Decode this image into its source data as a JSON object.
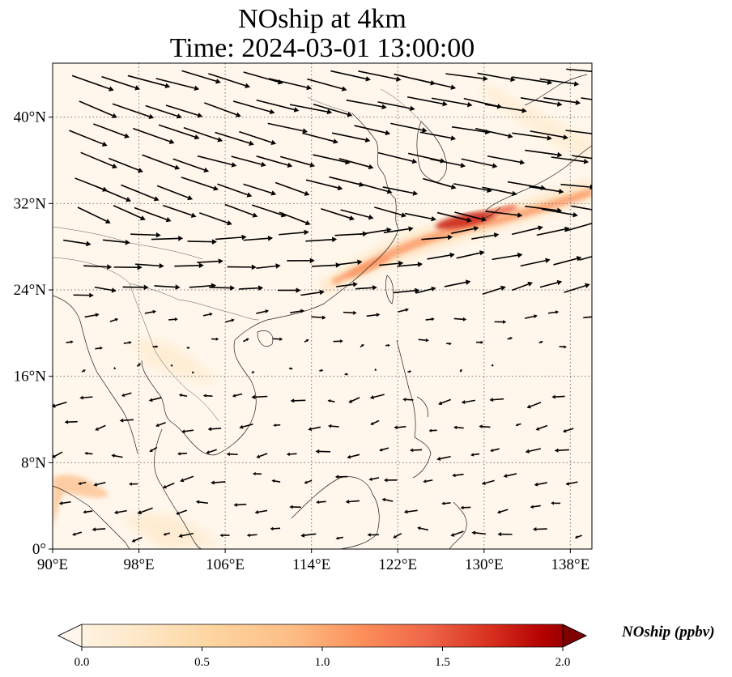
{
  "title_line1": "NOship at 4km",
  "title_line2": "Time: 2024-03-01 13:00:00",
  "colorbar": {
    "label": "NOship (ppbv)",
    "ticks": [
      "0.0",
      "0.5",
      "1.0",
      "1.5",
      "2.0"
    ],
    "min": 0.0,
    "max": 2.0,
    "colormap": "OrRd",
    "extend": "both"
  },
  "map": {
    "lon_range": [
      90,
      140
    ],
    "lat_range": [
      0,
      45
    ],
    "x_ticks": [
      "90°E",
      "98°E",
      "106°E",
      "114°E",
      "122°E",
      "130°E",
      "138°E"
    ],
    "y_ticks": [
      "0°",
      "8°N",
      "16°N",
      "24°N",
      "32°N",
      "40°N"
    ],
    "grid": "dotted",
    "background_color": "#fff7ec",
    "plume_peak_color": "#c81d0e"
  }
}
